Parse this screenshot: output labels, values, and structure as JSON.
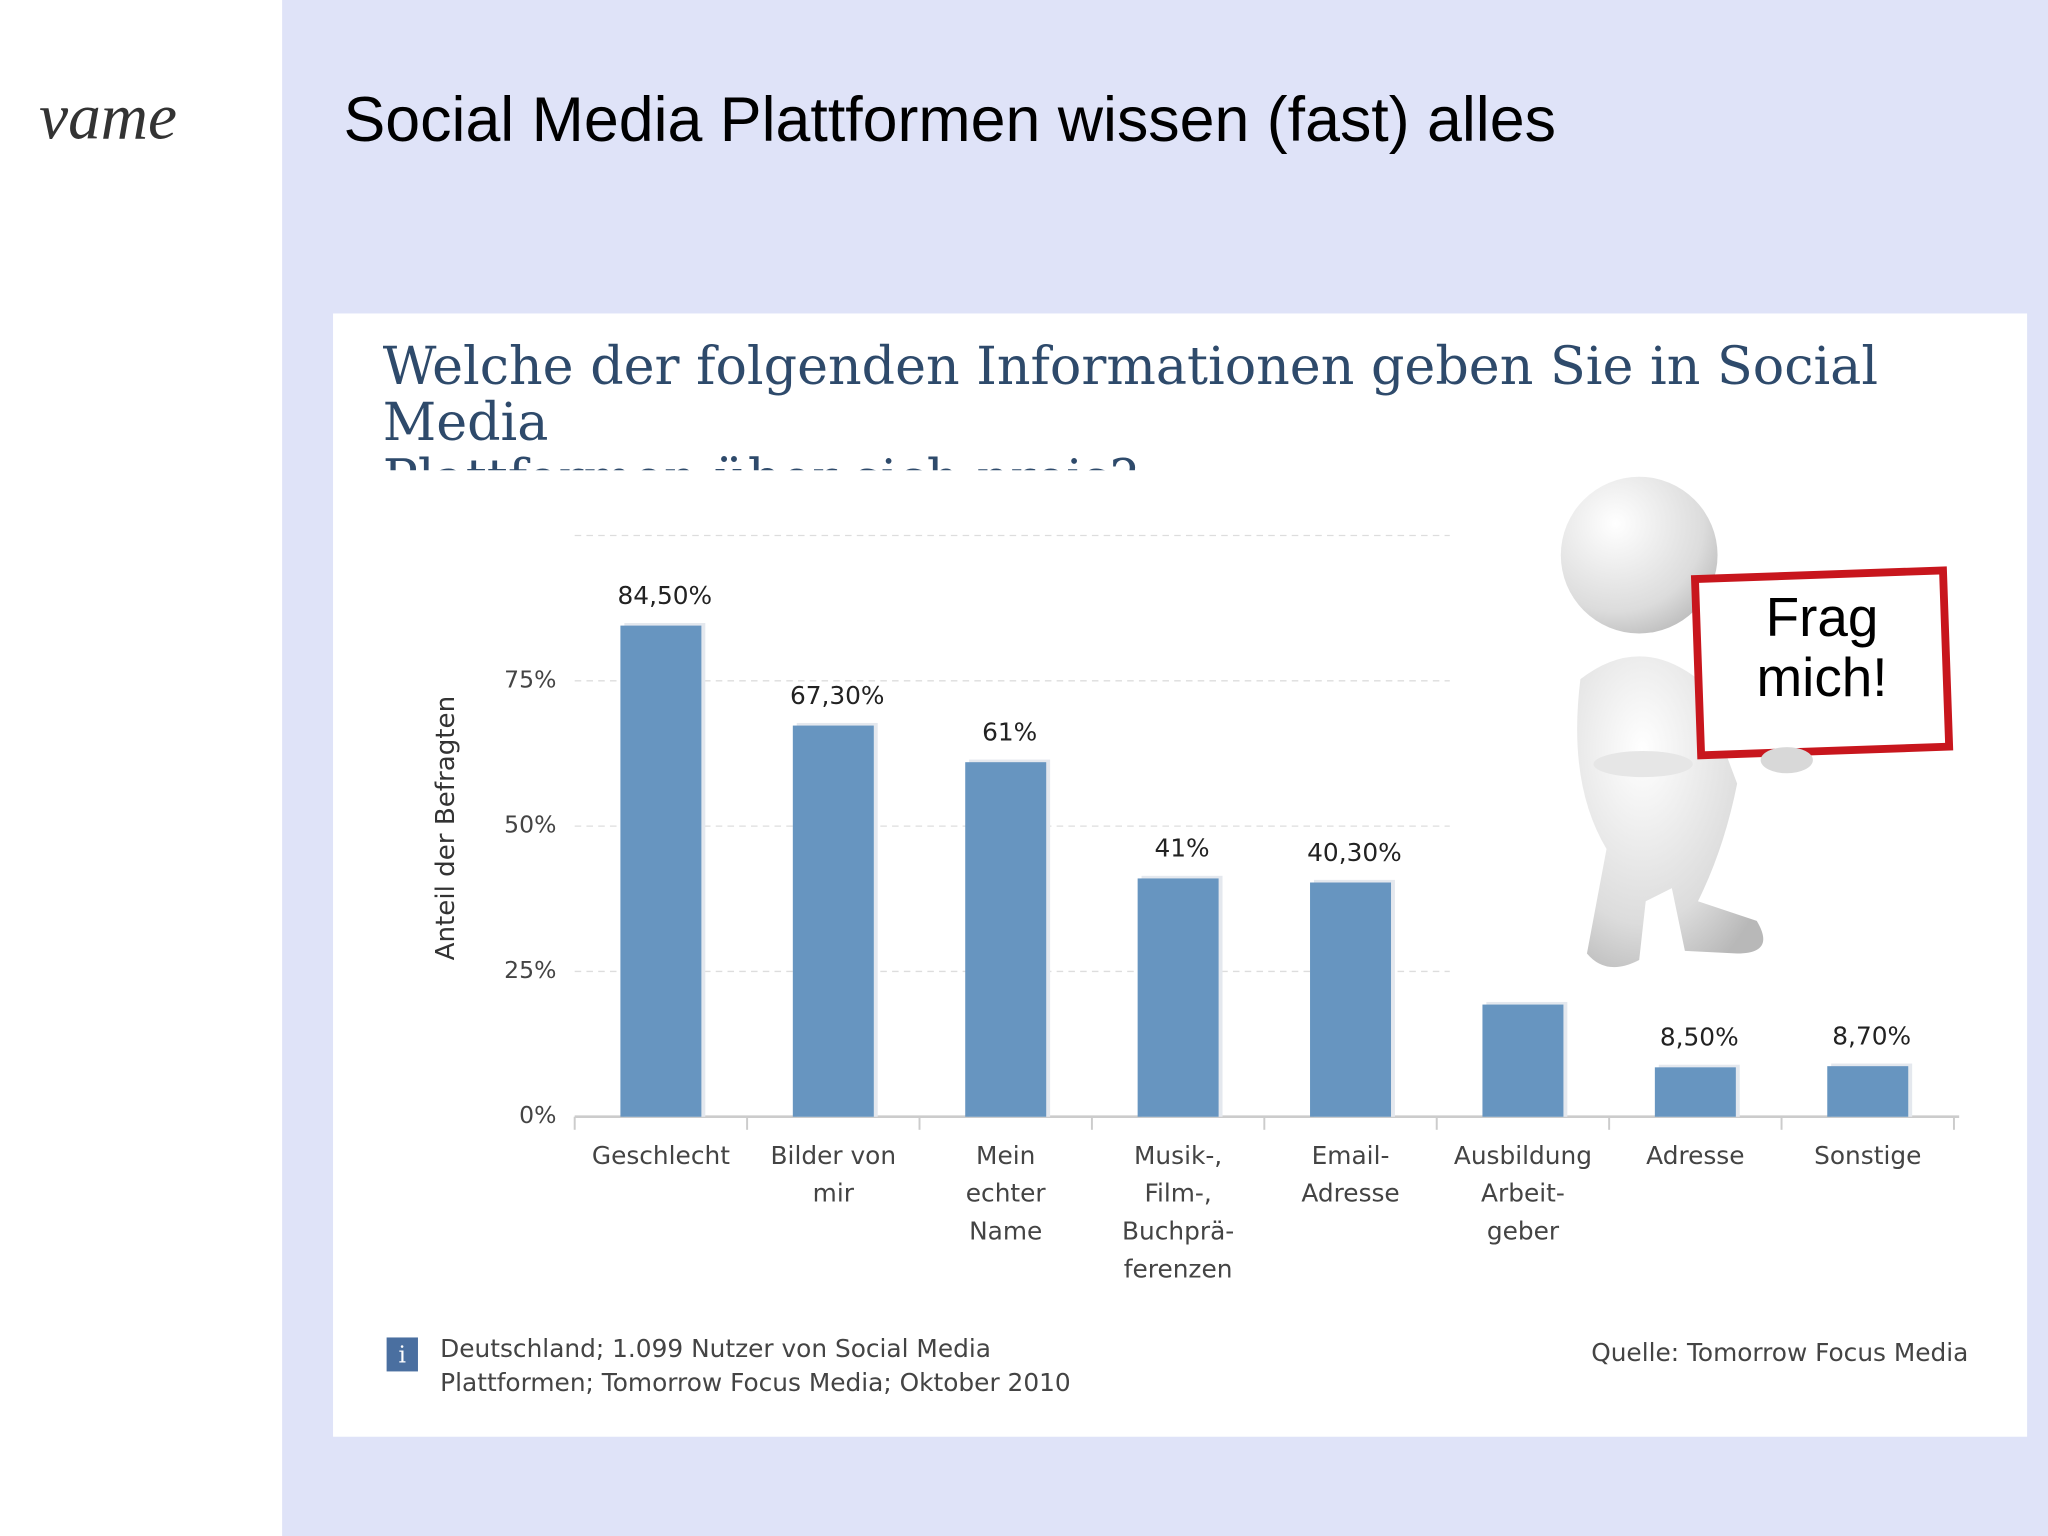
{
  "logo": "vame",
  "slide_title": "Social Media Plattformen wissen (fast) alles",
  "callout": "Frag\nmich!",
  "chart_data": {
    "type": "bar",
    "title": "Welche der folgenden Informationen geben Sie in Social Media\nPlattformen über sich preis?",
    "y_label": "Anteil der Befragten",
    "categories": [
      "Geschlecht",
      "Bilder von\nmir",
      "Mein\nechter\nName",
      "Musik-,\nFilm-,\nBuchprä-\nferenzen",
      "Email-\nAdresse",
      "Ausbildung\nArbeit-\ngeber",
      "Adresse",
      "Sonstige"
    ],
    "values": [
      84.5,
      67.3,
      61,
      41,
      40.3,
      19.3,
      8.5,
      8.7
    ],
    "value_labels": [
      "84,50%",
      "67,30%",
      "61%",
      "41%",
      "40,30%",
      null,
      "8,50%",
      "8,70%"
    ],
    "color": "#6795c0",
    "ylim": [
      0,
      100
    ],
    "yticks": [
      {
        "value": 0,
        "label": "0%"
      },
      {
        "value": 25,
        "label": "25%"
      },
      {
        "value": 50,
        "label": "50%"
      },
      {
        "value": 75,
        "label": "75%"
      }
    ],
    "grid": true,
    "note": "Deutschland; 1.099 Nutzer von Social Media\nPlattformen; Tomorrow Focus Media; Oktober 2010",
    "source": "Quelle: Tomorrow Focus Media"
  }
}
